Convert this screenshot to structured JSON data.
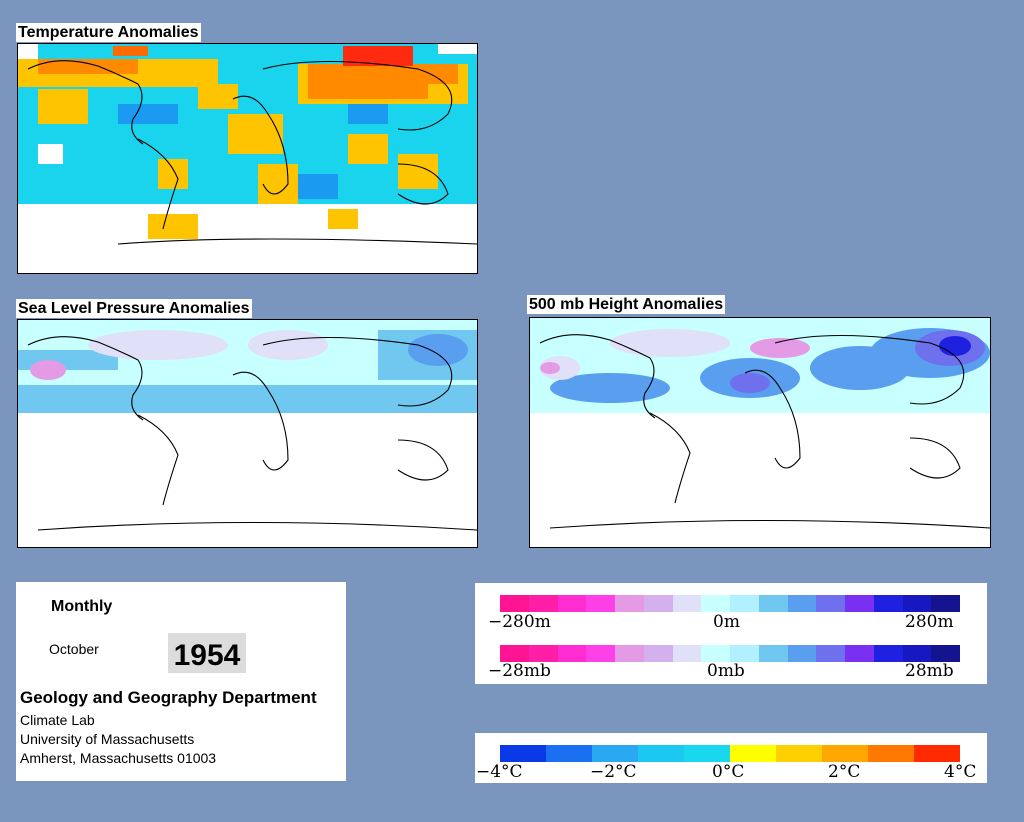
{
  "maps": {
    "temperature": {
      "title": "Temperature Anomalies"
    },
    "slp": {
      "title": "Sea Level Pressure Anomalies"
    },
    "height500": {
      "title": "500 mb Height Anomalies"
    }
  },
  "info": {
    "period": "Monthly",
    "month": "October",
    "year": "1954",
    "department": "Geology and Geography Department",
    "lines": [
      "Climate Lab",
      "University of Massachusetts",
      "Amherst, Massachusetts 01003"
    ]
  },
  "legends": {
    "height": {
      "labels": [
        "−280m",
        "0m",
        "280m"
      ]
    },
    "pressure": {
      "labels": [
        "−28mb",
        "0mb",
        "28mb"
      ]
    },
    "temperature": {
      "labels": [
        "−4°C",
        "−2°C",
        "0°C",
        "2°C",
        "4°C"
      ]
    }
  },
  "colors": {
    "background": "#7a96be",
    "pressure_scale": [
      "#ff1493",
      "#ff1ea8",
      "#ff2dd2",
      "#ff40e8",
      "#e59ae6",
      "#d4b0ee",
      "#e0e0f8",
      "#c8ffff",
      "#b0f0ff",
      "#70c8f0",
      "#5a9ef0",
      "#6e70ee",
      "#7a30f0",
      "#2020e0",
      "#1818c0",
      "#141490"
    ],
    "temperature_scale": [
      "#0a3ae8",
      "#1a70f0",
      "#2aa8f2",
      "#1ac8f0",
      "#19d8ee",
      "#ffff00",
      "#ffd000",
      "#ffa800",
      "#ff7800",
      "#ff2a00"
    ]
  }
}
